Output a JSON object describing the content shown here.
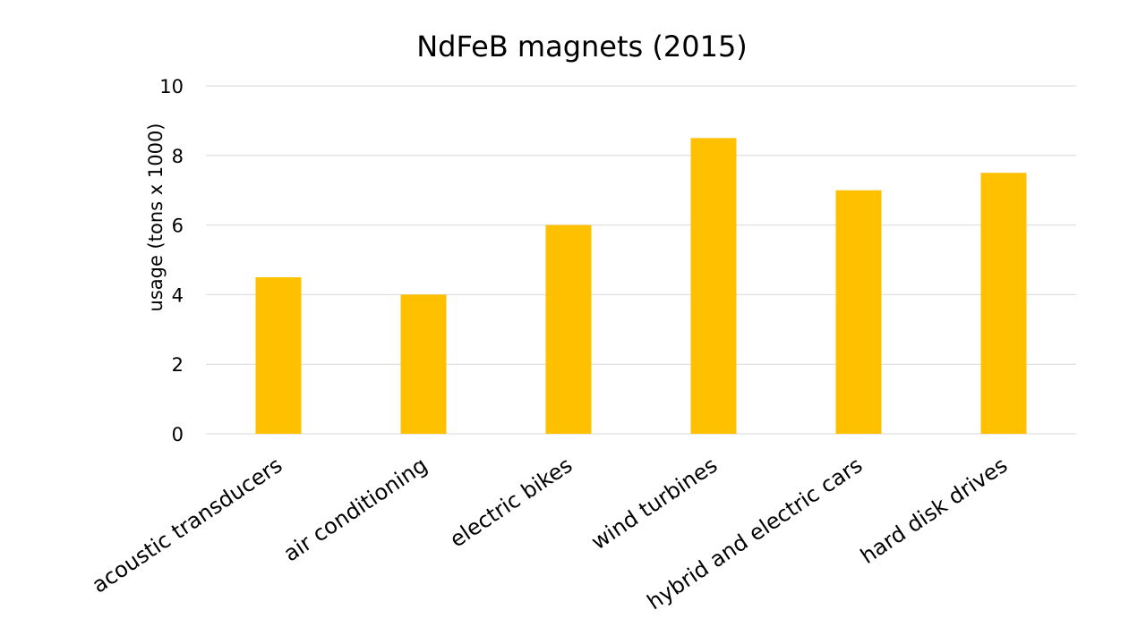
{
  "chart_data": {
    "type": "bar",
    "title": "NdFeB magnets (2015)",
    "xlabel": "",
    "ylabel": "usage (tons x 1000)",
    "categories": [
      "acoustic transducers",
      "air conditioning",
      "electric bikes",
      "wind turbines",
      "hybrid and electric cars",
      "hard disk drives"
    ],
    "values": [
      4.5,
      4.0,
      6.0,
      8.5,
      7.0,
      7.5
    ],
    "ylim": [
      0,
      10
    ],
    "yticks": [
      0,
      2,
      4,
      6,
      8,
      10
    ],
    "grid": true,
    "legend": "none",
    "bar_color": "#FFC000",
    "gridline_color": "#D9D9D9"
  }
}
